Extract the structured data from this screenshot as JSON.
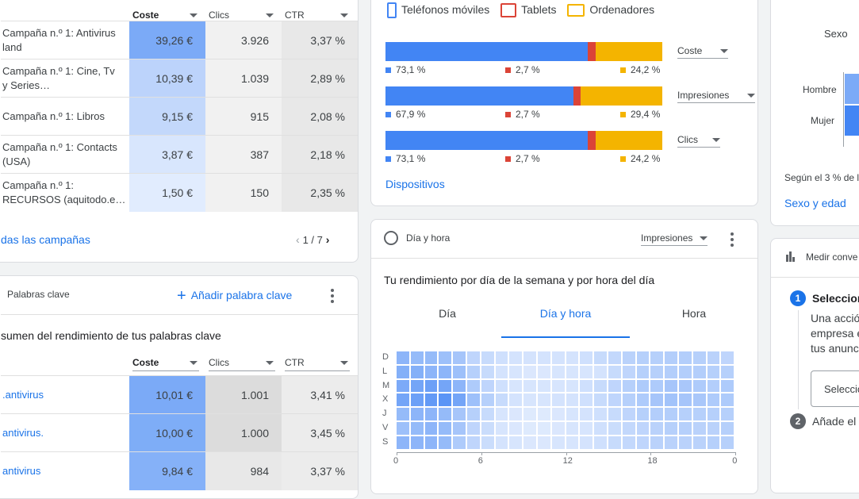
{
  "campaigns_card": {
    "columns": [
      "Coste",
      "Clics",
      "CTR"
    ],
    "rows": [
      {
        "name": "Campaña n.º 1: Antivirus\nland",
        "cost": "39,26 €",
        "clicks": "3.926",
        "ctr": "3,37 %",
        "cost_shade": "#7baaf7"
      },
      {
        "name": "Campaña n.º 1: Cine, Tv\ny Series…",
        "cost": "10,39 €",
        "clicks": "1.039",
        "ctr": "2,89 %",
        "cost_shade": "#bcd3fb"
      },
      {
        "name": "Campaña n.º 1: Libros",
        "cost": "9,15 €",
        "clicks": "915",
        "ctr": "2,08 %",
        "cost_shade": "#c3d8fb"
      },
      {
        "name": "Campaña n.º 1: Contacts\n(USA)",
        "cost": "3,87 €",
        "clicks": "387",
        "ctr": "2,18 %",
        "cost_shade": "#d8e6fd"
      },
      {
        "name": "Campaña n.º 1:\nRECURSOS (aquitodo.e…",
        "cost": "1,50 €",
        "clicks": "150",
        "ctr": "2,35 %",
        "cost_shade": "#e1ecfe"
      }
    ],
    "footer_link": "das las campañas",
    "pagination": "1 / 7"
  },
  "keywords_card": {
    "title": "Palabras clave",
    "add_label": "Añadir palabra clave",
    "subtitle": "sumen del rendimiento de tus palabras clave",
    "columns": [
      "Coste",
      "Clics",
      "CTR"
    ],
    "rows": [
      {
        "name": ".antivirus",
        "cost": "10,01 €",
        "clicks": "1.001",
        "ctr": "3,41 %"
      },
      {
        "name": "antivirus.",
        "cost": "10,00 €",
        "clicks": "1.000",
        "ctr": "3,45 %"
      },
      {
        "name": "antivirus",
        "cost": "9,84 €",
        "clicks": "984",
        "ctr": "3,37 %"
      }
    ]
  },
  "devices_card": {
    "legend": [
      "Teléfonos móviles",
      "Tablets",
      "Ordenadores"
    ],
    "colors": {
      "mobile": "#4285f4",
      "tablet": "#db4437",
      "desktop": "#f4b400"
    },
    "bars": [
      {
        "metric": "Coste",
        "mobile": 73.1,
        "tablet": 2.7,
        "desktop": 24.2,
        "mobile_label": "73,1 %",
        "tablet_label": "2,7 %",
        "desktop_label": "24,2 %"
      },
      {
        "metric": "Impresiones",
        "mobile": 67.9,
        "tablet": 2.7,
        "desktop": 29.4,
        "mobile_label": "67,9 %",
        "tablet_label": "2,7 %",
        "desktop_label": "29,4 %"
      },
      {
        "metric": "Clics",
        "mobile": 73.1,
        "tablet": 2.7,
        "desktop": 24.2,
        "mobile_label": "73,1 %",
        "tablet_label": "2,7 %",
        "desktop_label": "24,2 %"
      }
    ],
    "link": "Dispositivos"
  },
  "dayhour_card": {
    "title": "Día y hora",
    "metric": "Impresiones",
    "subtitle": "Tu rendimiento por día de la semana y por hora del día",
    "tabs": [
      "Día",
      "Día y hora",
      "Hora"
    ],
    "active_tab": 1,
    "days": [
      "D",
      "L",
      "M",
      "X",
      "J",
      "V",
      "S"
    ],
    "hour_ticks": [
      "0",
      "6",
      "12",
      "18",
      "0"
    ]
  },
  "demographics_card": {
    "title": "Sexo",
    "labels": [
      "Hombre",
      "Mujer"
    ],
    "note": "Según el 3 % de l",
    "link": "Sexo y edad"
  },
  "conversions_card": {
    "title": "Medir conve",
    "step1_num": "1",
    "step1_title": "Seleccion",
    "step1_text_lines": [
      "Una acció",
      "empresa e",
      "tus anunc"
    ],
    "select_placeholder": "Seleccio",
    "step2_num": "2",
    "step2_title": "Añade el"
  }
}
